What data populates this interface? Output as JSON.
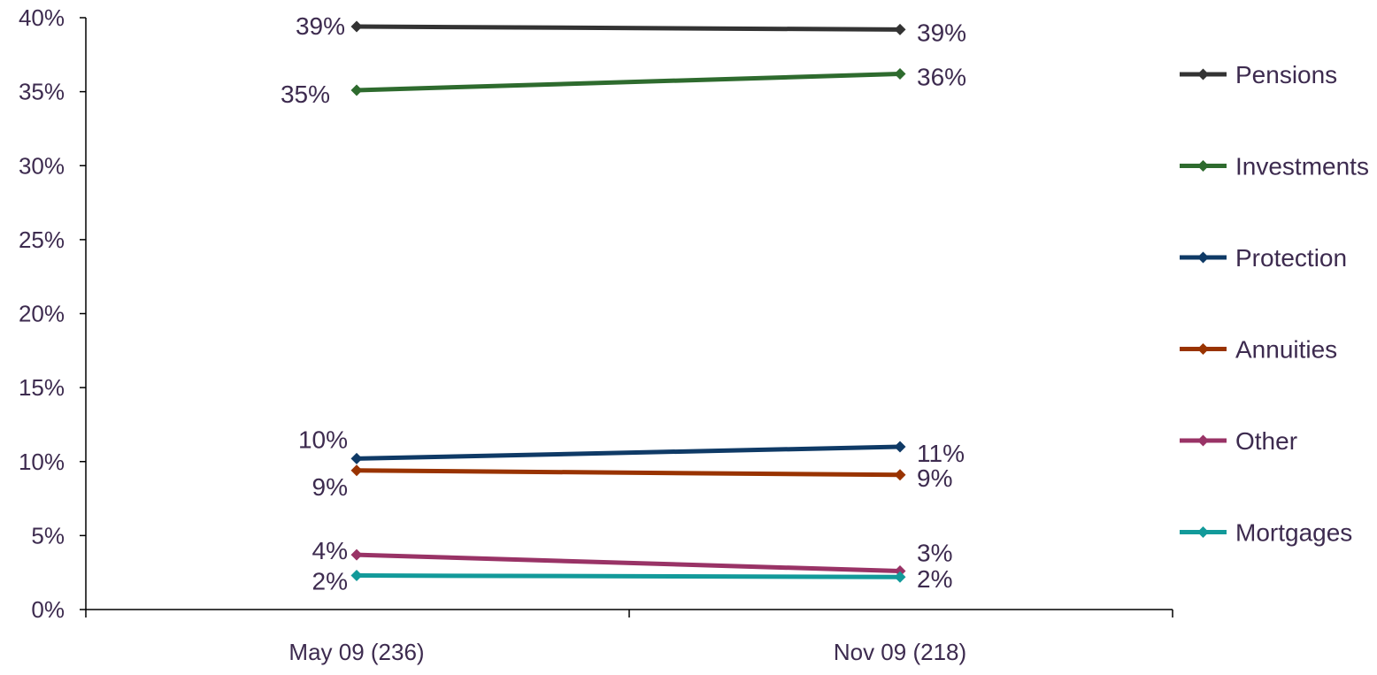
{
  "chart_data": {
    "type": "line",
    "title": "",
    "xlabel": "",
    "ylabel": "",
    "categories": [
      "May 09 (236)",
      "Nov 09 (218)"
    ],
    "ylim": [
      0,
      40
    ],
    "yticks": [
      "0%",
      "5%",
      "10%",
      "15%",
      "20%",
      "25%",
      "30%",
      "35%",
      "40%"
    ],
    "grid": false,
    "legend_position": "right",
    "series": [
      {
        "name": "Pensions",
        "color": "#333333",
        "values": [
          39.4,
          39.2
        ],
        "labels": [
          "39%",
          "39%"
        ]
      },
      {
        "name": "Investments",
        "color": "#2e6b2e",
        "values": [
          35.1,
          36.2
        ],
        "labels": [
          "35%",
          "36%"
        ]
      },
      {
        "name": "Protection",
        "color": "#0f3a66",
        "values": [
          10.2,
          11.0
        ],
        "labels": [
          "10%",
          "11%"
        ]
      },
      {
        "name": "Annuities",
        "color": "#993300",
        "values": [
          9.4,
          9.1
        ],
        "labels": [
          "9%",
          "9%"
        ]
      },
      {
        "name": "Other",
        "color": "#993366",
        "values": [
          3.7,
          2.6
        ],
        "labels": [
          "4%",
          "3%"
        ]
      },
      {
        "name": "Mortgages",
        "color": "#129a9a",
        "values": [
          2.3,
          2.2
        ],
        "labels": [
          "2%",
          "2%"
        ]
      }
    ]
  }
}
